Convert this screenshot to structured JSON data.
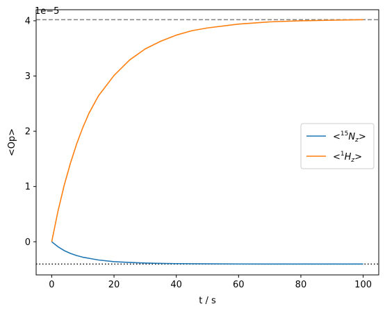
{
  "chart_data": {
    "type": "line",
    "title": "",
    "xlabel": "t / s",
    "ylabel": "<Op>",
    "y_offset_label": "1e−5",
    "xlim": [
      -5,
      105
    ],
    "ylim": [
      -0.6,
      4.2
    ],
    "xticks": [
      0,
      20,
      40,
      60,
      80,
      100
    ],
    "yticks": [
      0,
      1,
      2,
      3,
      4
    ],
    "grid": false,
    "legend_position": "center-right",
    "series": [
      {
        "name": "<15Nz>",
        "legend_base": "<",
        "legend_sup": "15",
        "legend_var": "N",
        "legend_sub": "z",
        "legend_end": ">",
        "color": "#1f77b4",
        "x": [
          0,
          2,
          4,
          6,
          8,
          10,
          12,
          15,
          20,
          25,
          30,
          35,
          40,
          50,
          60,
          70,
          80,
          90,
          100
        ],
        "values": [
          0,
          -0.09,
          -0.16,
          -0.21,
          -0.25,
          -0.28,
          -0.3,
          -0.33,
          -0.36,
          -0.375,
          -0.385,
          -0.392,
          -0.396,
          -0.4,
          -0.402,
          -0.403,
          -0.403,
          -0.403,
          -0.403
        ]
      },
      {
        "name": "<1Hz>",
        "legend_base": "<",
        "legend_sup": "1",
        "legend_var": "H",
        "legend_sub": "z",
        "legend_end": ">",
        "color": "#ff7f0e",
        "x": [
          0,
          2,
          4,
          6,
          8,
          10,
          12,
          15,
          20,
          25,
          30,
          35,
          40,
          45,
          50,
          60,
          70,
          80,
          90,
          100
        ],
        "values": [
          0,
          0.55,
          1.02,
          1.42,
          1.77,
          2.07,
          2.33,
          2.64,
          3.01,
          3.29,
          3.49,
          3.63,
          3.74,
          3.82,
          3.87,
          3.94,
          3.98,
          4.0,
          4.01,
          4.02
        ]
      }
    ],
    "reference_lines": [
      {
        "y": 4.02,
        "style": "dashed",
        "color": "#808080"
      },
      {
        "y": -0.403,
        "style": "dotted",
        "color": "#000000"
      }
    ]
  }
}
